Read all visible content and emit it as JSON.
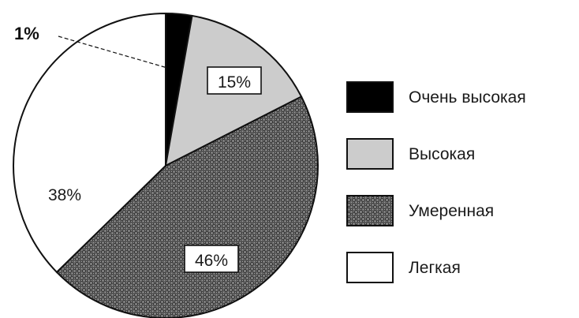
{
  "chart_data": {
    "type": "pie",
    "title": "",
    "slices": [
      {
        "label": "Очень высокая",
        "value": 1,
        "display": "1%",
        "fill": "#000000",
        "pattern": "solid"
      },
      {
        "label": "Высокая",
        "value": 15,
        "display": "15%",
        "fill": "#cccccc",
        "pattern": "solid"
      },
      {
        "label": "Умеренная",
        "value": 46,
        "display": "46%",
        "fill": "#5a5a5a",
        "pattern": "checker"
      },
      {
        "label": "Легкая",
        "value": 38,
        "display": "38%",
        "fill": "#ffffff",
        "pattern": "solid"
      }
    ],
    "start_angle_deg": 0,
    "direction": "clockwise",
    "legend_position": "right"
  }
}
